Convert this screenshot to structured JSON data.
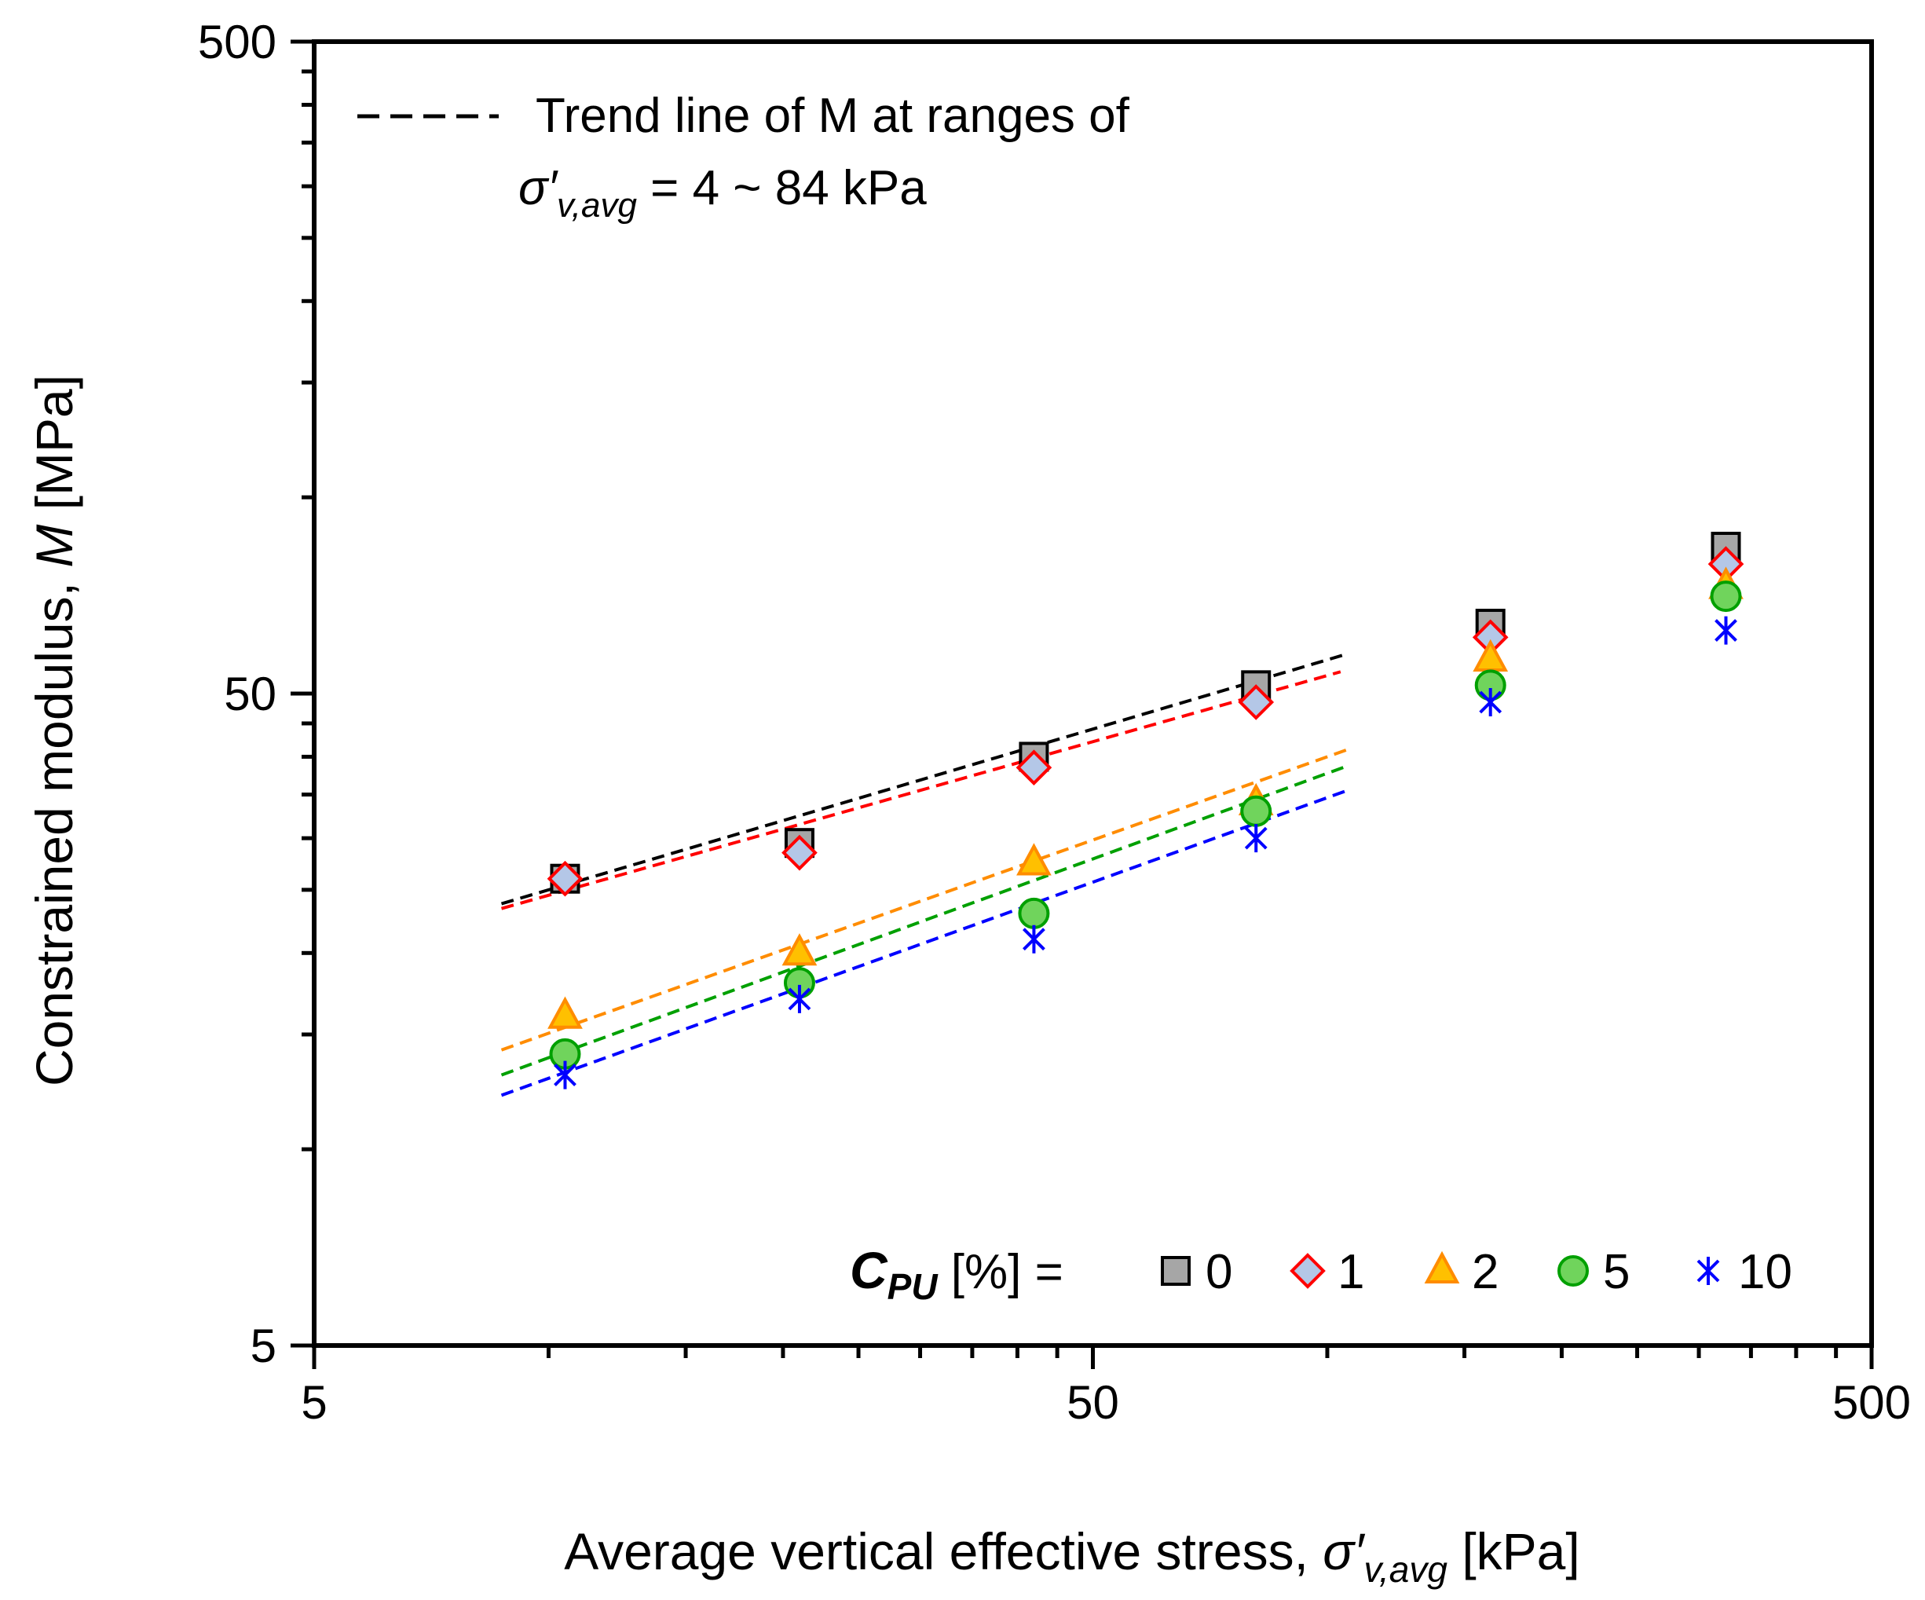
{
  "chart_data": {
    "type": "scatter",
    "xscale": "log",
    "yscale": "log",
    "xlim": [
      5,
      500
    ],
    "ylim": [
      5,
      500
    ],
    "x_ticks": [
      "5",
      "50",
      "500"
    ],
    "y_ticks": [
      "500",
      "50",
      "5"
    ],
    "xlabel": {
      "prefix": "Average vertical effective stress, ",
      "sigma": "σ′",
      "sub": "v,avg",
      "suffix": " [kPa]"
    },
    "ylabel": {
      "prefix": "Constrained modulus, ",
      "symbol": "M",
      "suffix": " [MPa]"
    },
    "trend_legend": {
      "line1": "Trend line of M at ranges of",
      "sigma": "σ′",
      "sub": "v,avg",
      "rest": " = 4 ~ 84 kPa"
    },
    "series_legend": {
      "c": "C",
      "sub": "PU",
      "rest": " [%] ="
    },
    "series": [
      {
        "name": "0",
        "marker": "square",
        "fill": "#a6a6a6",
        "stroke": "#000000",
        "x": [
          10.5,
          21,
          42,
          81,
          162,
          325
        ],
        "y": [
          26.0,
          29.5,
          40.0,
          51.5,
          64.0,
          84.0
        ]
      },
      {
        "name": "1",
        "marker": "diamond",
        "fill": "#b4c7e7",
        "stroke": "#ff0000",
        "x": [
          10.5,
          21,
          42,
          81,
          162,
          325
        ],
        "y": [
          26.0,
          28.5,
          38.5,
          48.5,
          61.0,
          79.0
        ]
      },
      {
        "name": "2",
        "marker": "triangle",
        "fill": "#ffc000",
        "stroke": "#ff8c00",
        "x": [
          10.5,
          21,
          42,
          81,
          162,
          325
        ],
        "y": [
          16.0,
          20.0,
          27.5,
          34.0,
          56.5,
          73.0
        ]
      },
      {
        "name": "5",
        "marker": "circle",
        "fill": "#70d45c",
        "stroke": "#00a000",
        "x": [
          10.5,
          21,
          42,
          81,
          162,
          325
        ],
        "y": [
          14.0,
          18.0,
          23.0,
          33.0,
          51.5,
          70.5
        ]
      },
      {
        "name": "10",
        "marker": "asterisk",
        "fill": "none",
        "stroke": "#0000ff",
        "x": [
          10.5,
          21,
          42,
          81,
          162,
          325
        ],
        "y": [
          13.0,
          17.0,
          21.0,
          30.0,
          48.5,
          62.5
        ]
      }
    ],
    "trend_lines": [
      {
        "series": "0",
        "color": "#000000",
        "x": [
          8.7,
          106
        ],
        "y": [
          23.8,
          57.5
        ]
      },
      {
        "series": "1",
        "color": "#ff0000",
        "x": [
          8.7,
          104
        ],
        "y": [
          23.4,
          54.0
        ]
      },
      {
        "series": "2",
        "color": "#ff8c00",
        "x": [
          8.7,
          106
        ],
        "y": [
          14.2,
          41.0
        ]
      },
      {
        "series": "5",
        "color": "#00a000",
        "x": [
          8.7,
          106
        ],
        "y": [
          13.0,
          38.7
        ]
      },
      {
        "series": "10",
        "color": "#0000ff",
        "x": [
          8.7,
          106
        ],
        "y": [
          12.1,
          35.5
        ]
      }
    ]
  }
}
